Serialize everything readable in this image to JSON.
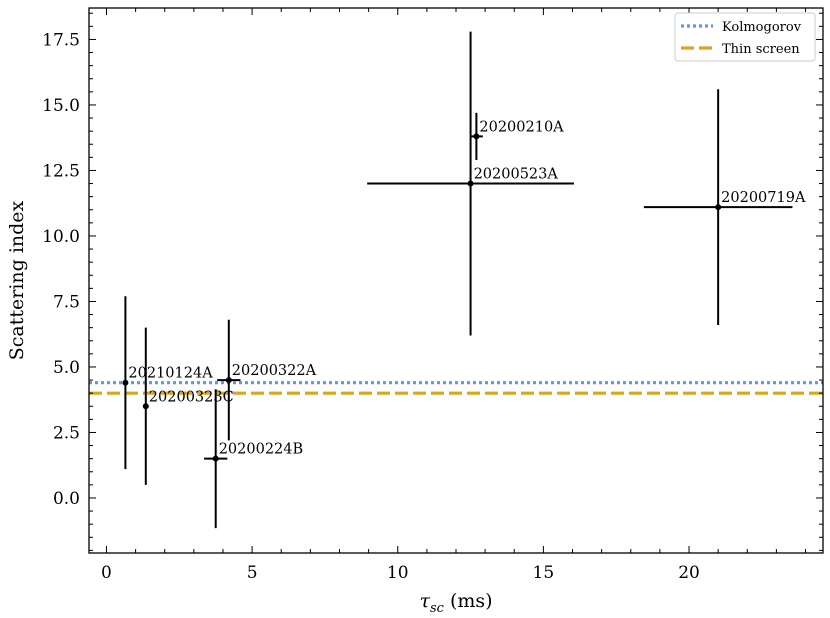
{
  "chart_data": {
    "type": "scatter",
    "title": "",
    "xlabel": {
      "symbol": "τ",
      "subscript": "sc",
      "unit": "(ms)"
    },
    "ylabel": "Scattering index",
    "xlim": [
      -0.6,
      24.6
    ],
    "ylim": [
      -2.1,
      18.7
    ],
    "xticks": [
      0,
      5,
      10,
      15,
      20
    ],
    "xtick_labels": [
      "0",
      "5",
      "10",
      "15",
      "20"
    ],
    "yticks": [
      0.0,
      2.5,
      5.0,
      7.5,
      10.0,
      12.5,
      15.0,
      17.5
    ],
    "ytick_labels": [
      "0.0",
      "2.5",
      "5.0",
      "7.5",
      "10.0",
      "12.5",
      "15.0",
      "17.5"
    ],
    "x_minor_step": 1,
    "y_minor_step": 0.5,
    "grid": false,
    "legend_position": "top-right",
    "points": [
      {
        "label": "20210124A",
        "x": 0.65,
        "y": 4.4,
        "xerr": 0,
        "yerr": 3.3
      },
      {
        "label": "20200323C",
        "x": 1.35,
        "y": 3.5,
        "xerr": 0,
        "yerr": 3.0
      },
      {
        "label": "20200224B",
        "x": 3.75,
        "y": 1.5,
        "xerr": 0.4,
        "yerr": 2.65
      },
      {
        "label": "20200322A",
        "x": 4.2,
        "y": 4.5,
        "xerr": 0.4,
        "yerr": 2.3
      },
      {
        "label": "20200210A",
        "x": 12.7,
        "y": 13.8,
        "xerr": 0.22,
        "yerr": 0.9
      },
      {
        "label": "20200523A",
        "x": 12.5,
        "y": 12.0,
        "xerr": 3.55,
        "yerr": 5.8
      },
      {
        "label": "20200719A",
        "x": 21.0,
        "y": 11.1,
        "xerr": 2.55,
        "yerr": 4.5
      }
    ],
    "reference_lines": [
      {
        "name": "Kolmogorov",
        "y": 4.4,
        "color": "#6495ed",
        "style": "dotted"
      },
      {
        "name": "Thin screen",
        "y": 4.0,
        "color": "#daa520",
        "style": "dashed"
      }
    ]
  }
}
